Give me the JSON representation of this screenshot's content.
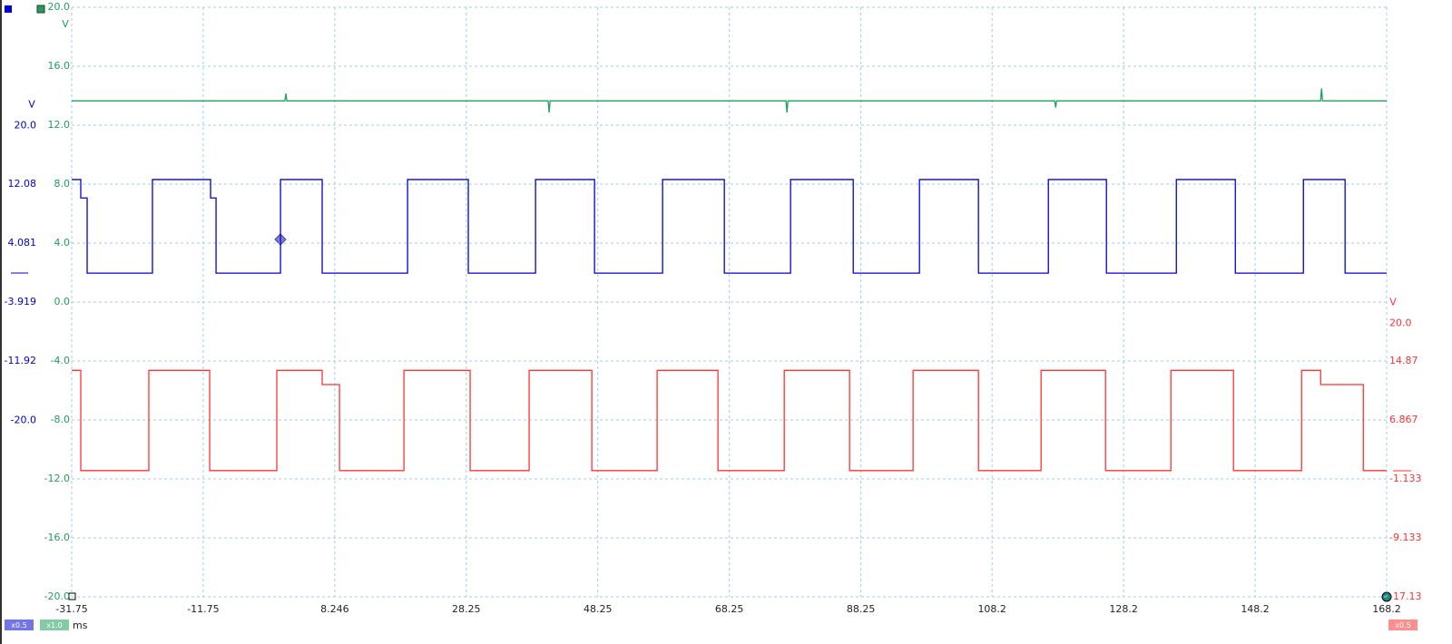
{
  "chart_data": {
    "type": "line",
    "x_label": "ms",
    "xlim": [
      -31.75,
      168.2
    ],
    "xticks": [
      -31.75,
      -11.75,
      8.246,
      28.25,
      48.25,
      68.25,
      88.25,
      108.2,
      128.2,
      148.2,
      168.2
    ],
    "grid": true,
    "series": [
      {
        "color": "#1ea05a",
        "unit": "V",
        "scale": "x1.0",
        "side": "left-inner",
        "ylim": [
          -20,
          20
        ],
        "yticks": [
          {
            "value": 20,
            "label": "20.0"
          },
          {
            "value": 16,
            "label": "16.0"
          },
          {
            "value": 12,
            "label": "12.0"
          },
          {
            "value": 8,
            "label": "8.0"
          },
          {
            "value": 4,
            "label": "4.0"
          },
          {
            "value": 0,
            "label": "0.0"
          },
          {
            "value": -4,
            "label": "-4.0"
          },
          {
            "value": -8,
            "label": "-8.0"
          },
          {
            "value": -12,
            "label": "-12.0"
          },
          {
            "value": -16,
            "label": "-16.0"
          },
          {
            "value": -20,
            "label": "-20.0"
          }
        ],
        "x": [
          -31.75,
          0.67,
          0.82,
          0.97,
          40.7,
          40.85,
          41.0,
          76.86,
          77.01,
          77.16,
          117.72,
          117.87,
          118.02,
          158.15,
          158.3,
          158.45,
          168.2
        ],
        "values": [
          13.65,
          13.65,
          14.15,
          13.65,
          13.65,
          12.86,
          13.65,
          13.65,
          12.86,
          13.65,
          13.65,
          13.2,
          13.65,
          13.65,
          14.5,
          13.65,
          13.65
        ]
      },
      {
        "color": "#0000d8",
        "unit": "V",
        "scale": "x0.5",
        "side": "left-outer",
        "ylim": [
          -43.92,
          36.08
        ],
        "yticks": [
          {
            "value": 20,
            "label": "20.0"
          },
          12.08,
          4.081,
          -3.919,
          -11.92,
          {
            "value": -20,
            "label": "-20.0"
          }
        ],
        "x": [
          -31.75,
          -30.37,
          -30.37,
          -29.4,
          -29.4,
          -19.47,
          -19.47,
          -10.63,
          -10.63,
          -9.8,
          -9.8,
          0,
          0,
          6.34,
          6.34,
          19.32,
          19.32,
          28.56,
          28.56,
          38.78,
          38.78,
          47.75,
          47.75,
          58.1,
          58.1,
          67.49,
          67.49,
          77.56,
          77.56,
          87.09,
          87.09,
          97.16,
          97.16,
          106.13,
          106.13,
          116.76,
          116.76,
          125.59,
          125.59,
          136.22,
          136.22,
          145.19,
          145.19,
          155.54,
          155.54,
          161.88,
          161.88,
          168.2
        ],
        "values": [
          12.7,
          12.7,
          10.2,
          10.2,
          0,
          0,
          12.7,
          12.7,
          10.2,
          10.2,
          0,
          0,
          12.7,
          12.7,
          0,
          0,
          12.7,
          12.7,
          0,
          0,
          12.7,
          12.7,
          0,
          0,
          12.7,
          12.7,
          0,
          0,
          12.7,
          12.7,
          0,
          0,
          12.7,
          12.7,
          0,
          0,
          12.7,
          12.7,
          0,
          0,
          12.7,
          12.7,
          0,
          0,
          12.7,
          12.7,
          0,
          0
        ]
      },
      {
        "color": "#ff3333",
        "unit": "V",
        "scale": "x0.5",
        "side": "right",
        "ylim": [
          -17.13,
          62.87
        ],
        "yticks": [
          {
            "value": 20,
            "label": "20.0"
          },
          14.87,
          6.867,
          -1.133,
          -9.133,
          -17.13
        ],
        "x": [
          -31.75,
          -30.37,
          -30.37,
          -20.02,
          -20.02,
          -10.77,
          -10.77,
          -0.56,
          -0.56,
          6.34,
          6.34,
          8.97,
          8.97,
          18.77,
          18.77,
          28.84,
          28.84,
          37.81,
          37.81,
          47.34,
          47.34,
          57.27,
          57.27,
          66.52,
          66.52,
          76.6,
          76.6,
          86.53,
          86.53,
          96.19,
          96.19,
          106.13,
          106.13,
          115.65,
          115.65,
          125.45,
          125.45,
          135.39,
          135.39,
          144.91,
          144.91,
          155.26,
          155.26,
          158.16,
          158.16,
          164.65,
          164.65,
          168.2
        ],
        "values": [
          13.6,
          13.6,
          0,
          0,
          13.6,
          13.6,
          0,
          0,
          13.6,
          13.6,
          11.67,
          11.67,
          0,
          0,
          13.6,
          13.6,
          0,
          0,
          13.6,
          13.6,
          0,
          0,
          13.6,
          13.6,
          0,
          0,
          13.6,
          13.6,
          0,
          0,
          13.6,
          13.6,
          0,
          0,
          13.6,
          13.6,
          0,
          0,
          13.6,
          13.6,
          0,
          0,
          13.6,
          13.6,
          11.67,
          11.67,
          0,
          0
        ]
      }
    ]
  }
}
